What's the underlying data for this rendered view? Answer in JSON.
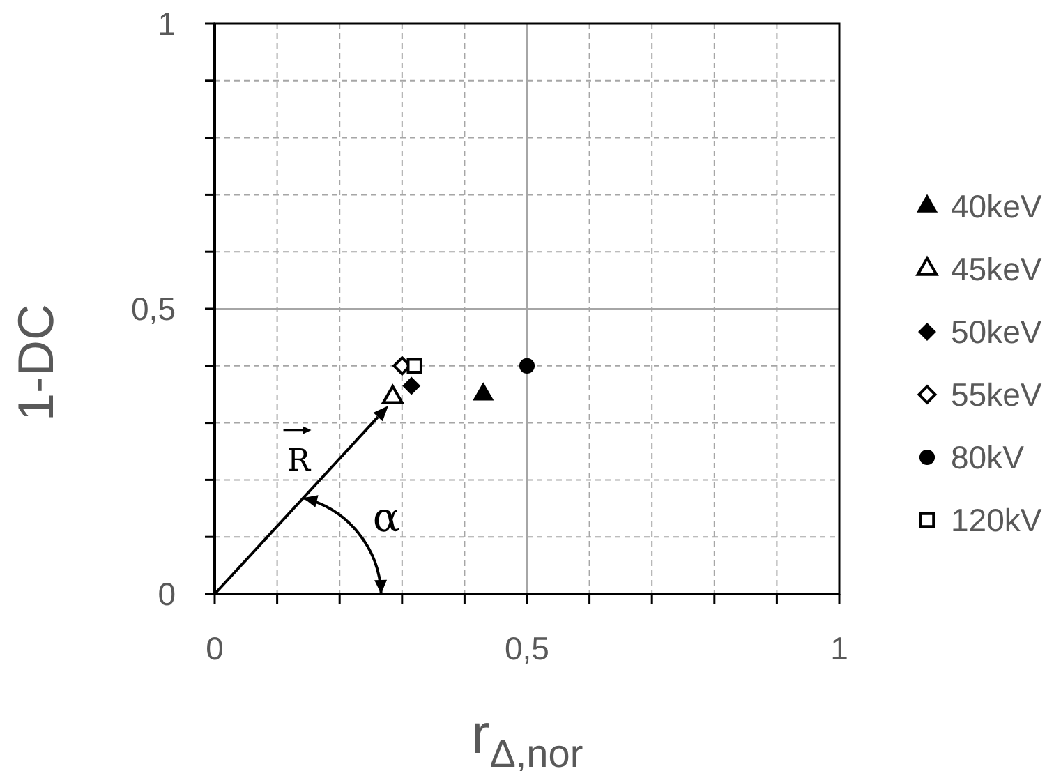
{
  "chart_data": {
    "type": "scatter",
    "xlabel": "r$_{Δ,nor}$",
    "ylabel": "1-DC",
    "xlim": [
      0,
      1
    ],
    "ylim": [
      0,
      1
    ],
    "xticks": [
      0,
      {
        "value": 0.1,
        "label": null
      },
      {
        "value": 0.2,
        "label": null
      },
      {
        "value": 0.3,
        "label": null
      },
      {
        "value": 0.4,
        "label": null
      },
      {
        "value": 0.5,
        "label": "0,5"
      },
      {
        "value": 0.6,
        "label": null
      },
      {
        "value": 0.7,
        "label": null
      },
      {
        "value": 0.8,
        "label": null
      },
      {
        "value": 0.9,
        "label": null
      },
      1
    ],
    "yticks": [
      0,
      {
        "value": 0.1,
        "label": null
      },
      {
        "value": 0.2,
        "label": null
      },
      {
        "value": 0.3,
        "label": null
      },
      {
        "value": 0.4,
        "label": null
      },
      {
        "value": 0.5,
        "label": "0,5"
      },
      {
        "value": 0.6,
        "label": null
      },
      {
        "value": 0.7,
        "label": null
      },
      {
        "value": 0.8,
        "label": null
      },
      {
        "value": 0.9,
        "label": null
      },
      1
    ],
    "grid": true,
    "legend": "right",
    "series": [
      {
        "name": "40keV",
        "color": "#000000",
        "marker": "triangle",
        "x": [
          0.43
        ],
        "values": [
          0.35
        ]
      },
      {
        "name": "45keV",
        "color": "#000000",
        "marker": "triangle-open",
        "x": [
          0.285
        ],
        "values": [
          0.345
        ]
      },
      {
        "name": "50keV",
        "color": "#000000",
        "marker": "diamond",
        "x": [
          0.315
        ],
        "values": [
          0.365
        ]
      },
      {
        "name": "55keV",
        "color": "#000000",
        "marker": "diamond-open",
        "x": [
          0.3
        ],
        "values": [
          0.4
        ]
      },
      {
        "name": "80kV",
        "color": "#000000",
        "marker": "circle",
        "x": [
          0.5
        ],
        "values": [
          0.4
        ]
      },
      {
        "name": "120kV",
        "color": "#000000",
        "marker": "square-open",
        "x": [
          0.32
        ],
        "values": [
          0.4
        ]
      }
    ],
    "annotations": [
      {
        "text": "R",
        "x": 0.278,
        "y": 0.33
      },
      "α"
    ]
  }
}
